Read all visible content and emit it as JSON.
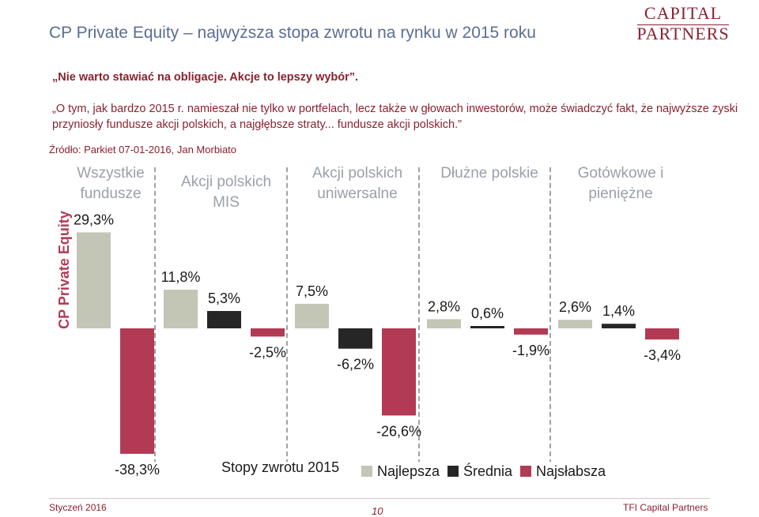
{
  "slide": {
    "title": "CP Private Equity – najwyższa stopa zwrotu na rynku w 2015 roku",
    "logo_line1": "CAPITAL",
    "logo_line2": "PARTNERS",
    "quote_head": "„Nie warto stawiać na obligacje. Akcje to lepszy wybór”.",
    "quote_body": "„O tym, jak bardzo 2015 r. namieszał nie tylko w portfelach, lecz także w głowach inwestorów, może świadczyć fakt, że najwyższe zyski przyniosły fundusze akcji polskich, a najgłębsze straty... fundusze akcji polskich.”",
    "source": "Źródło: Parkiet 07-01-2016, Jan Morbiato",
    "footer_date": "Styczeń 2016",
    "footer_page": "10",
    "footer_brand": "TFI Capital Partners"
  },
  "chart_data": {
    "type": "bar",
    "title": "Stopy zwrotu 2015",
    "series_names": [
      "Najlepsza",
      "Średnia",
      "Najsłabsza"
    ],
    "colors": {
      "Najlepsza": "#c3c5b5",
      "Średnia": "#262626",
      "Najsłabsza": "#b23a54",
      "text": "#1a1a1a",
      "highlight": "#b23a54",
      "category": "#9aa0aa"
    },
    "highlight_label": "CP Private Equity",
    "categories": [
      {
        "name": "Wszystkie fundusze",
        "lines": [
          "Wszystkie",
          "fundusze"
        ],
        "best": 29.3,
        "best_label": "29,3%",
        "avg": null,
        "avg_label": "",
        "worst": -38.3,
        "worst_label": "-38,3%"
      },
      {
        "name": "Akcji polskich MIS",
        "lines": [
          "Akcji polskich",
          "MIS"
        ],
        "best": 11.8,
        "best_label": "11,8%",
        "avg": 5.3,
        "avg_label": "5,3%",
        "worst": -2.5,
        "worst_label": "-2,5%"
      },
      {
        "name": "Akcji polskich uniwersalne",
        "lines": [
          "Akcji polskich",
          "uniwersalne"
        ],
        "best": 7.5,
        "best_label": "7,5%",
        "avg": -6.2,
        "avg_label": "-6,2%",
        "worst": -26.6,
        "worst_label": "-26,6%"
      },
      {
        "name": "Dłużne polskie",
        "lines": [
          "Dłużne polskie"
        ],
        "best": 2.8,
        "best_label": "2,8%",
        "avg": 0.6,
        "avg_label": "0,6%",
        "worst": -1.9,
        "worst_label": "-1,9%"
      },
      {
        "name": "Gotówkowe i pieniężne",
        "lines": [
          "Gotówkowe i",
          "pieniężne"
        ],
        "best": 2.6,
        "best_label": "2,6%",
        "avg": 1.4,
        "avg_label": "1,4%",
        "worst": -3.4,
        "worst_label": "-3,4%"
      }
    ]
  }
}
